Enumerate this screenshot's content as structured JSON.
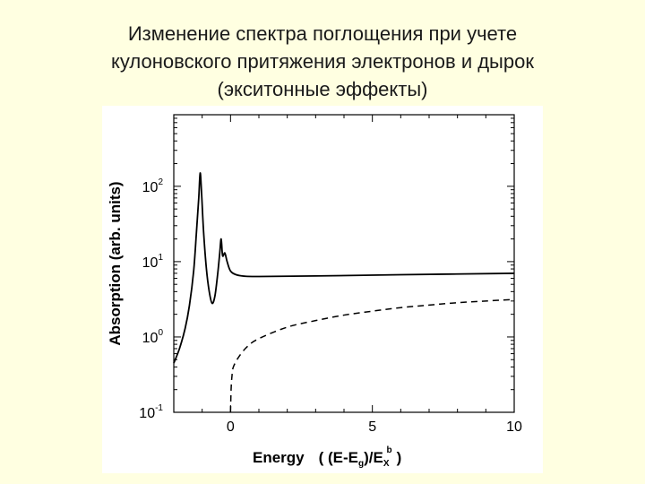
{
  "slide": {
    "title_lines": [
      "Изменение спектра поглощения при учете",
      "кулоновского притяжения электронов и дырок",
      "(экситонные эффекты)"
    ]
  },
  "chart_data": {
    "type": "line",
    "xlabel": "Energy",
    "xlabel_formula": {
      "open": "( (E-E",
      "sub_g": "g",
      "mid": ")/E",
      "sub_x": "X",
      "sup_b": "b",
      "close": ")"
    },
    "ylabel": "Absorption (arb. units)",
    "xlim": [
      -2,
      10
    ],
    "ylim_log10": [
      -1,
      2.95
    ],
    "y_scale": "log",
    "x_ticks": [
      {
        "value": 0,
        "label": "0"
      },
      {
        "value": 5,
        "label": "5"
      },
      {
        "value": 10,
        "label": "10"
      }
    ],
    "y_ticks": [
      {
        "exp": -1,
        "base": "10",
        "sup": "-1"
      },
      {
        "exp": 0,
        "base": "10",
        "sup": "0"
      },
      {
        "exp": 1,
        "base": "10",
        "sup": "1"
      },
      {
        "exp": 2,
        "base": "10",
        "sup": "2"
      }
    ],
    "grid": false,
    "series": [
      {
        "style": "solid",
        "color": "#000000",
        "points": [
          [
            -2.0,
            0.45
          ],
          [
            -1.8,
            0.7
          ],
          [
            -1.6,
            1.3
          ],
          [
            -1.45,
            2.6
          ],
          [
            -1.3,
            7.5
          ],
          [
            -1.2,
            25
          ],
          [
            -1.12,
            70
          ],
          [
            -1.07,
            150
          ],
          [
            -1.02,
            80
          ],
          [
            -0.95,
            25
          ],
          [
            -0.85,
            8
          ],
          [
            -0.75,
            4
          ],
          [
            -0.65,
            2.8
          ],
          [
            -0.55,
            3.5
          ],
          [
            -0.45,
            7
          ],
          [
            -0.38,
            13
          ],
          [
            -0.33,
            20
          ],
          [
            -0.28,
            12
          ],
          [
            -0.2,
            13
          ],
          [
            -0.12,
            10
          ],
          [
            0.0,
            7.5
          ],
          [
            0.2,
            6.7
          ],
          [
            0.5,
            6.4
          ],
          [
            1.0,
            6.35
          ],
          [
            3.0,
            6.45
          ],
          [
            6.0,
            6.7
          ],
          [
            10.0,
            7.0
          ]
        ]
      },
      {
        "style": "dashed",
        "color": "#000000",
        "points": [
          [
            0.0,
            0.1
          ],
          [
            0.02,
            0.2
          ],
          [
            0.05,
            0.3
          ],
          [
            0.1,
            0.4
          ],
          [
            0.3,
            0.55
          ],
          [
            0.6,
            0.75
          ],
          [
            1.0,
            0.95
          ],
          [
            2.0,
            1.35
          ],
          [
            3.0,
            1.65
          ],
          [
            4.0,
            1.95
          ],
          [
            5.0,
            2.2
          ],
          [
            6.0,
            2.45
          ],
          [
            7.0,
            2.65
          ],
          [
            8.0,
            2.85
          ],
          [
            9.0,
            3.0
          ],
          [
            10.0,
            3.15
          ]
        ]
      }
    ]
  }
}
